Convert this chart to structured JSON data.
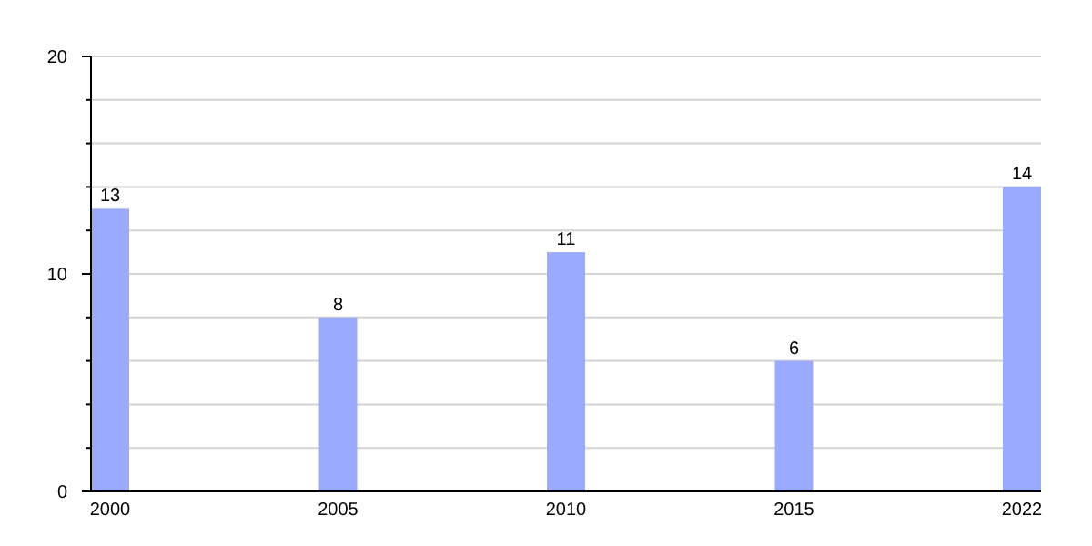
{
  "chart_data": {
    "type": "bar",
    "categories": [
      "2000",
      "2005",
      "2010",
      "2015",
      "2022"
    ],
    "values": [
      13,
      8,
      11,
      6,
      14
    ],
    "color": "#99aaff",
    "ylim": [
      0,
      20
    ],
    "yticks": [
      0,
      {
        "value": 2,
        "label": null
      },
      {
        "value": 4,
        "label": null
      },
      {
        "value": 6,
        "label": null
      },
      {
        "value": 8,
        "label": null
      },
      10,
      {
        "value": 12,
        "label": null
      },
      {
        "value": 14,
        "label": null
      },
      {
        "value": 16,
        "label": null
      },
      {
        "value": 18,
        "label": null
      },
      20
    ],
    "grid": true,
    "data_labels": true
  }
}
